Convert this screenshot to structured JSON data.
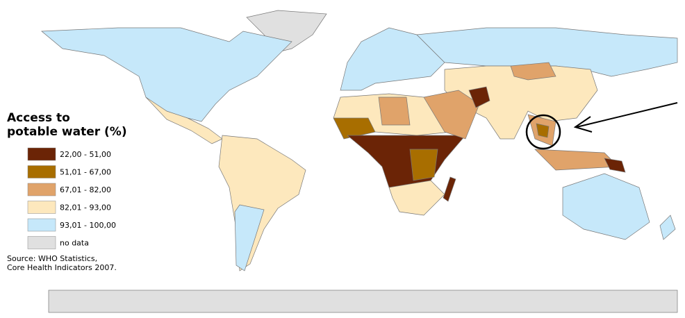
{
  "legend": {
    "title": [
      "Access to",
      "potable water (%)"
    ],
    "items": [
      {
        "label": "22,00 - 51,00",
        "color": "#6b2406"
      },
      {
        "label": "51,01 - 67,00",
        "color": "#a86e00"
      },
      {
        "label": "67,01 - 82,00",
        "color": "#e0a36a"
      },
      {
        "label": "82,01 - 93,00",
        "color": "#fde8bd"
      },
      {
        "label": "93,01 - 100,00",
        "color": "#c6e8fa"
      },
      {
        "label": "no data",
        "color": "#e0e0e0"
      }
    ]
  },
  "source": [
    "Source: WHO Statistics,",
    "Core Health Indicators 2007."
  ]
}
